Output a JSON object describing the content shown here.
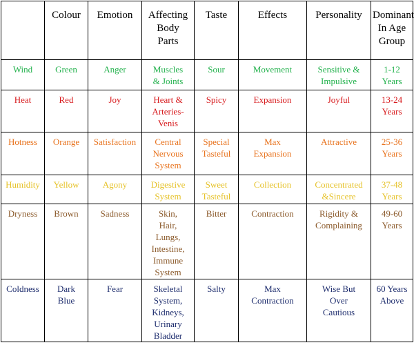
{
  "headers": [
    "",
    "Colour",
    "Emotion",
    "Affecting\nBody\nParts",
    "Taste",
    "Effects",
    "Personality",
    "Dominant\nIn Age\nGroup"
  ],
  "rows": [
    {
      "color": "#22b14c",
      "cells": [
        "Wind",
        "Green",
        "Anger",
        "Muscles\n& Joints",
        "Sour",
        "Movement",
        "Sensitive &\nImpulsive",
        "1-12\nYears"
      ]
    },
    {
      "color": "#d7191c",
      "cells": [
        "Heat",
        "Red",
        "Joy",
        "Heart &\nArteries-\nVenis",
        "Spicy",
        "Expansion",
        "Joyful",
        "13-24\nYears"
      ]
    },
    {
      "color": "#e8731e",
      "cells": [
        "Hotness",
        "Orange",
        "Satisfaction",
        "Central\nNervous\nSystem",
        "Special\nTasteful",
        "Max\nExpansion",
        "Attractive",
        "25-36\nYears"
      ]
    },
    {
      "color": "#e6c229",
      "cells": [
        "Humidity",
        "Yellow",
        "Agony",
        "Digestive\nSystem",
        "Sweet\nTasteful",
        "Collection",
        "Concentrated\n&Sincere",
        "37-48\nYears"
      ]
    },
    {
      "color": "#8b5a2b",
      "cells": [
        "Dryness",
        "Brown",
        "Sadness",
        "Skin,\nHair,\nLungs,\nIntestine,\nImmune\nSystem",
        "Bitter",
        "Contraction",
        "Rigidity &\nComplaining",
        "49-60\nYears"
      ]
    },
    {
      "color": "#1f2e6e",
      "cells": [
        "Coldness",
        "Dark\nBlue",
        "Fear",
        "Skeletal\nSystem,\nKidneys,\nUrinary\nBladder",
        "Salty",
        "Max\nContraction",
        "Wise But\nOver\nCautious",
        "60 Years\nAbove"
      ]
    }
  ]
}
